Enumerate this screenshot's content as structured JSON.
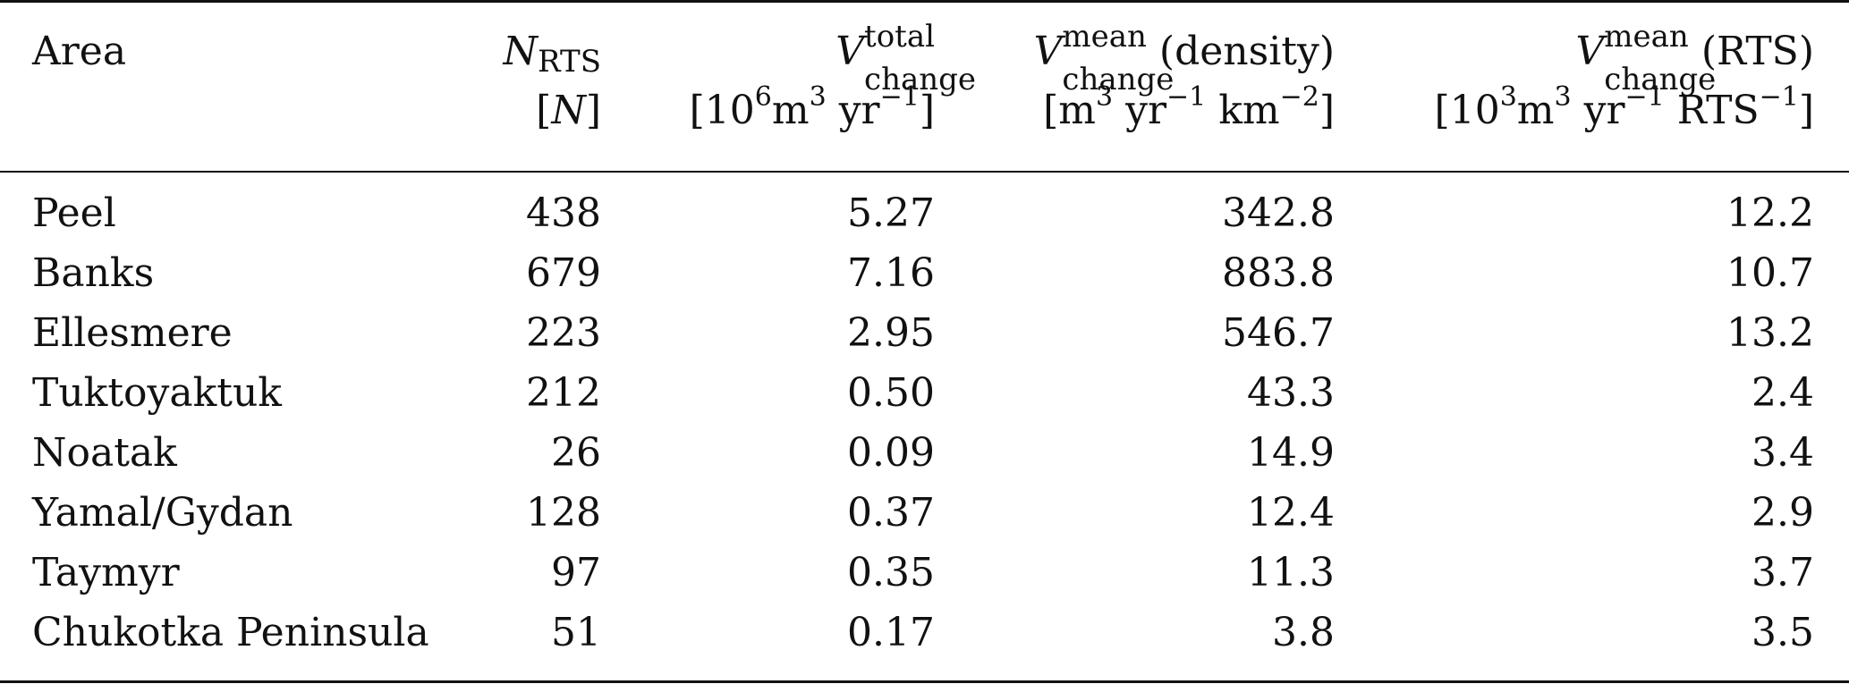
{
  "table": {
    "headers": {
      "area": "Area",
      "n_rts": {
        "symbol": "N",
        "subscript": "RTS",
        "unit": "[N]"
      },
      "v_total": {
        "symbol": "V",
        "superscript": "total",
        "subscript": "change",
        "unit_parts": [
          "[10",
          "6",
          "m",
          "3",
          " yr",
          "−1",
          "]"
        ]
      },
      "v_density": {
        "symbol": "V",
        "superscript": "mean",
        "subscript": "change",
        "suffix": " (density)",
        "unit_parts": [
          "[m",
          "3",
          " yr",
          "−1",
          " km",
          "−2",
          "]"
        ]
      },
      "v_rts": {
        "symbol": "V",
        "superscript": "mean",
        "subscript": "change",
        "suffix": " (RTS)",
        "unit_parts": [
          "[10",
          "3",
          "m",
          "3",
          " yr",
          "−1",
          " RTS",
          "−1",
          "]"
        ]
      }
    },
    "rows": [
      {
        "area": "Peel",
        "n": "438",
        "v_total": "5.27",
        "v_density": "342.8",
        "v_rts": "12.2"
      },
      {
        "area": "Banks",
        "n": "679",
        "v_total": "7.16",
        "v_density": "883.8",
        "v_rts": "10.7"
      },
      {
        "area": "Ellesmere",
        "n": "223",
        "v_total": "2.95",
        "v_density": "546.7",
        "v_rts": "13.2"
      },
      {
        "area": "Tuktoyaktuk",
        "n": "212",
        "v_total": "0.50",
        "v_density": "43.3",
        "v_rts": "2.4"
      },
      {
        "area": "Noatak",
        "n": "26",
        "v_total": "0.09",
        "v_density": "14.9",
        "v_rts": "3.4"
      },
      {
        "area": "Yamal/Gydan",
        "n": "128",
        "v_total": "0.37",
        "v_density": "12.4",
        "v_rts": "2.9"
      },
      {
        "area": "Taymyr",
        "n": "97",
        "v_total": "0.35",
        "v_density": "11.3",
        "v_rts": "3.7"
      },
      {
        "area": "Chukotka Peninsula",
        "n": "51",
        "v_total": "0.17",
        "v_density": "3.8",
        "v_rts": "3.5"
      }
    ]
  }
}
